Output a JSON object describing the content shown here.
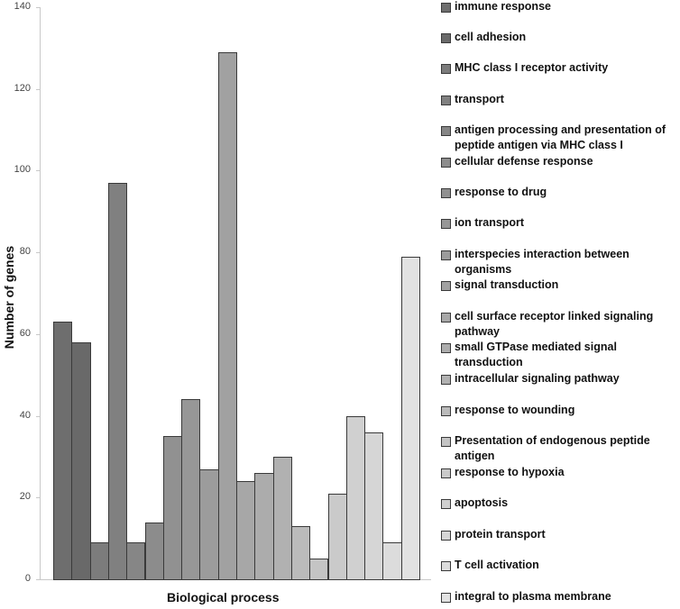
{
  "chart_data": {
    "type": "bar",
    "title": "",
    "xlabel": "Biological process",
    "ylabel": "Number of genes",
    "ylim": [
      0,
      140
    ],
    "yticks": [
      0,
      20,
      40,
      60,
      80,
      100,
      120,
      140
    ],
    "grid": false,
    "legend_position": "right",
    "categories": [
      "immune response",
      "cell adhesion",
      "MHC class I receptor activity",
      "transport",
      "antigen processing and presentation of peptide antigen via MHC class I",
      "cellular defense response",
      "response to drug",
      "ion transport",
      "interspecies interaction between organisms",
      "signal transduction",
      "cell surface receptor linked signaling pathway",
      "small GTPase mediated signal transduction",
      "intracellular signaling pathway",
      "response to wounding",
      "Presentation of endogenous peptide antigen",
      "response to hypoxia",
      "apoptosis",
      "protein transport",
      "T cell activation",
      "integral to plasma membrane"
    ],
    "values": [
      63,
      58,
      9,
      97,
      9,
      14,
      35,
      44,
      27,
      129,
      24,
      26,
      30,
      13,
      5,
      21,
      40,
      36,
      9,
      79
    ],
    "colors": [
      "#6e6e6e",
      "#696969",
      "#7c7c7c",
      "#808080",
      "#868686",
      "#8c8c8c",
      "#919191",
      "#979797",
      "#9c9c9c",
      "#a1a1a1",
      "#a7a7a7",
      "#acacac",
      "#b1b1b1",
      "#bbbbbb",
      "#c4c4c4",
      "#cacaca",
      "#d0d0d0",
      "#d6d6d6",
      "#dcdcdc",
      "#e2e2e2"
    ]
  },
  "legend": {
    "items": [
      {
        "label": "immune response",
        "lines": 1
      },
      {
        "label": "cell adhesion",
        "lines": 1
      },
      {
        "label": "MHC class I receptor activity",
        "lines": 1
      },
      {
        "label": "transport",
        "lines": 1
      },
      {
        "label": "antigen processing and presentation of peptide antigen via MHC class I",
        "lines": 2
      },
      {
        "label": "cellular defense response",
        "lines": 1
      },
      {
        "label": "response to drug",
        "lines": 1
      },
      {
        "label": "ion transport",
        "lines": 1
      },
      {
        "label": "interspecies interaction between organisms",
        "lines": 2
      },
      {
        "label": "signal transduction",
        "lines": 1
      },
      {
        "label": "cell surface receptor linked signaling pathway",
        "lines": 2
      },
      {
        "label": "small GTPase mediated signal transduction",
        "lines": 2
      },
      {
        "label": "intracellular signaling pathway",
        "lines": 1
      },
      {
        "label": "response to wounding",
        "lines": 1
      },
      {
        "label": "Presentation of endogenous peptide antigen",
        "lines": 2
      },
      {
        "label": "response to hypoxia",
        "lines": 1
      },
      {
        "label": "apoptosis",
        "lines": 1
      },
      {
        "label": "protein transport",
        "lines": 1
      },
      {
        "label": "T cell activation",
        "lines": 1
      },
      {
        "label": "integral to plasma membrane",
        "lines": 1
      }
    ]
  }
}
